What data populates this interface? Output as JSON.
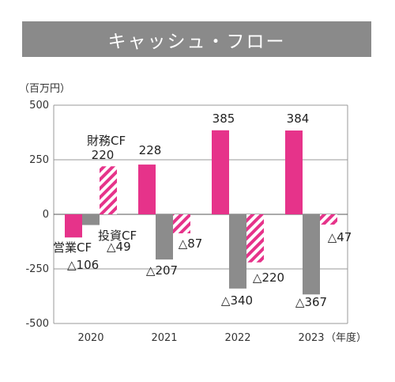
{
  "chart_data": {
    "type": "bar",
    "title": "キャッシュ・フロー",
    "unit_label": "（百万円）",
    "x_unit_label": "（年度）",
    "categories": [
      "2020",
      "2021",
      "2022",
      "2023"
    ],
    "series": [
      {
        "name": "営業CF",
        "values": [
          -106,
          228,
          385,
          384
        ],
        "value_labels": [
          "△106",
          "228",
          "385",
          "384"
        ],
        "color": "#e6338a",
        "pattern": "solid"
      },
      {
        "name": "投資CF",
        "values": [
          -49,
          -207,
          -340,
          -367
        ],
        "value_labels": [
          "△49",
          "△207",
          "△340",
          "△367"
        ],
        "color": "#8c8c8c",
        "pattern": "solid"
      },
      {
        "name": "財務CF",
        "values": [
          220,
          -87,
          -220,
          -47
        ],
        "value_labels": [
          "220",
          "△87",
          "△220",
          "△47"
        ],
        "color": "#e6338a",
        "pattern": "hatched"
      }
    ],
    "ylim": [
      -500,
      500
    ],
    "yticks": [
      "500",
      "250",
      "0",
      "-250",
      "-500"
    ],
    "grid": true
  }
}
